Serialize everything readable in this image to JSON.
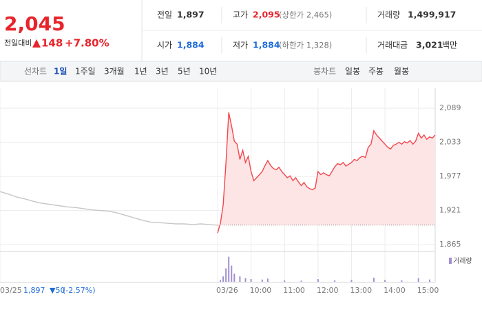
{
  "header": {
    "price": "2,045",
    "change_caption": "전일대비",
    "change": "148",
    "change_rate": "+7.80%",
    "stats": [
      {
        "label": "전일",
        "value": "1,897"
      },
      {
        "label": "고가",
        "value": "2,095",
        "note": "(상한가 2,465)"
      },
      {
        "label": "거래량",
        "value": "1,499,917"
      },
      {
        "label": "시가",
        "value": "1,884"
      },
      {
        "label": "저가",
        "value": "1,884",
        "note": "(하한가 1,328)"
      },
      {
        "label": "거래대금",
        "value": "3,021",
        "unit": "백만"
      }
    ]
  },
  "tabs": {
    "line_label": "선차트",
    "line_periods": [
      "1일",
      "1주일",
      "3개월",
      "1년",
      "3년",
      "5년",
      "10년"
    ],
    "candle_label": "봉차트",
    "candle_periods": [
      "일봉",
      "주봉",
      "월봉"
    ]
  },
  "prev_day": {
    "close": "1,897",
    "change": "▼50",
    "change_rate": "(-2.57%)"
  },
  "chart_data": {
    "type": "line",
    "xlim": [
      "03/25 09:00",
      "03/26 15:30"
    ],
    "xticks": [
      {
        "value": "03/25 09:00",
        "label": "03/25"
      },
      {
        "value": "03/26 09:00",
        "label": "03/26"
      },
      {
        "value": "03/26 10:00",
        "label": "10:00"
      },
      {
        "value": "03/26 11:00",
        "label": "11:00"
      },
      {
        "value": "03/26 12:00",
        "label": "12:00"
      },
      {
        "value": "03/26 13:00",
        "label": "13:00"
      },
      {
        "value": "03/26 14:00",
        "label": "14:00"
      },
      {
        "value": "03/26 15:00",
        "label": "15:00"
      }
    ],
    "ylim": [
      1856,
      2122
    ],
    "yticks": [
      {
        "value": 2089,
        "label": "2,089"
      },
      {
        "value": 2033,
        "label": "2,033"
      },
      {
        "value": 1977,
        "label": "1,977"
      },
      {
        "value": 1921,
        "label": "1,921"
      },
      {
        "value": 1865,
        "label": "1,865"
      }
    ],
    "grid": true,
    "reference_line": 1897,
    "series": [
      {
        "color": "#c6c6c6",
        "x": [
          "03/25 09:00",
          "03/25 09:15",
          "03/25 09:30",
          "03/25 09:45",
          "03/25 10:00",
          "03/25 10:15",
          "03/25 10:30",
          "03/25 10:45",
          "03/25 11:00",
          "03/25 11:15",
          "03/25 11:30",
          "03/25 11:45",
          "03/25 12:00",
          "03/25 12:15",
          "03/25 12:30",
          "03/25 12:45",
          "03/25 13:00",
          "03/25 13:15",
          "03/25 13:30",
          "03/25 13:45",
          "03/25 14:00",
          "03/25 14:15",
          "03/25 14:30",
          "03/25 14:45",
          "03/25 15:00",
          "03/25 15:15",
          "03/25 15:30"
        ],
        "values": [
          1952,
          1948,
          1943,
          1940,
          1936,
          1933,
          1931,
          1929,
          1927,
          1926,
          1924,
          1922,
          1921,
          1920,
          1917,
          1913,
          1909,
          1905,
          1902,
          1901,
          1900,
          1899,
          1899,
          1898,
          1899,
          1898,
          1897
        ]
      },
      {
        "color": "#f0484d",
        "fill": "#fde4e5",
        "x": [
          "03/26 09:00",
          "03/26 09:05",
          "03/26 09:10",
          "03/26 09:15",
          "03/26 09:20",
          "03/26 09:25",
          "03/26 09:30",
          "03/26 09:35",
          "03/26 09:40",
          "03/26 09:45",
          "03/26 09:50",
          "03/26 09:55",
          "03/26 10:00",
          "03/26 10:05",
          "03/26 10:10",
          "03/26 10:15",
          "03/26 10:20",
          "03/26 10:25",
          "03/26 10:30",
          "03/26 10:35",
          "03/26 10:40",
          "03/26 10:45",
          "03/26 10:50",
          "03/26 10:55",
          "03/26 11:00",
          "03/26 11:05",
          "03/26 11:10",
          "03/26 11:15",
          "03/26 11:20",
          "03/26 11:25",
          "03/26 11:30",
          "03/26 11:35",
          "03/26 11:40",
          "03/26 11:45",
          "03/26 11:50",
          "03/26 11:55",
          "03/26 12:00",
          "03/26 12:05",
          "03/26 12:10",
          "03/26 12:15",
          "03/26 12:20",
          "03/26 12:25",
          "03/26 12:30",
          "03/26 12:35",
          "03/26 12:40",
          "03/26 12:45",
          "03/26 12:50",
          "03/26 12:55",
          "03/26 13:00",
          "03/26 13:05",
          "03/26 13:10",
          "03/26 13:15",
          "03/26 13:20",
          "03/26 13:25",
          "03/26 13:30",
          "03/26 13:35",
          "03/26 13:40",
          "03/26 13:45",
          "03/26 13:50",
          "03/26 13:55",
          "03/26 14:00",
          "03/26 14:05",
          "03/26 14:10",
          "03/26 14:15",
          "03/26 14:20",
          "03/26 14:25",
          "03/26 14:30",
          "03/26 14:35",
          "03/26 14:40",
          "03/26 14:45",
          "03/26 14:50",
          "03/26 14:55",
          "03/26 15:00",
          "03/26 15:05",
          "03/26 15:10",
          "03/26 15:15",
          "03/26 15:20",
          "03/26 15:25",
          "03/26 15:30"
        ],
        "values": [
          1884,
          1900,
          1930,
          2000,
          2082,
          2060,
          2035,
          2030,
          2005,
          2020,
          2000,
          2010,
          1985,
          1970,
          1975,
          1980,
          1985,
          1995,
          2003,
          1995,
          1990,
          1988,
          1992,
          1985,
          1980,
          1975,
          1978,
          1970,
          1975,
          1968,
          1962,
          1967,
          1960,
          1957,
          1955,
          1958,
          1985,
          1980,
          1983,
          1980,
          1978,
          1985,
          1993,
          1998,
          1996,
          2000,
          1994,
          1997,
          2000,
          2005,
          2003,
          2008,
          2010,
          2008,
          2025,
          2030,
          2052,
          2045,
          2040,
          2035,
          2030,
          2025,
          2022,
          2028,
          2030,
          2033,
          2030,
          2034,
          2032,
          2036,
          2030,
          2035,
          2048,
          2040,
          2045,
          2038,
          2042,
          2040,
          2045
        ]
      }
    ],
    "volume": {
      "name": "거래량",
      "color": "#a18fcf",
      "ylim": [
        0,
        300000
      ],
      "x": [
        "03/26 09:05",
        "03/26 09:10",
        "03/26 09:15",
        "03/26 09:20",
        "03/26 09:25",
        "03/26 09:30",
        "03/26 09:40",
        "03/26 09:50",
        "03/26 10:00",
        "03/26 10:20",
        "03/26 10:30",
        "03/26 11:00",
        "03/26 11:30",
        "03/26 12:00",
        "03/26 12:30",
        "03/26 13:00",
        "03/26 13:40",
        "03/26 14:00",
        "03/26 14:30",
        "03/26 15:00",
        "03/26 15:20"
      ],
      "values": [
        20000,
        60000,
        150000,
        280000,
        180000,
        90000,
        60000,
        40000,
        30000,
        25000,
        35000,
        15000,
        12000,
        30000,
        15000,
        20000,
        45000,
        20000,
        15000,
        40000,
        25000
      ]
    }
  }
}
